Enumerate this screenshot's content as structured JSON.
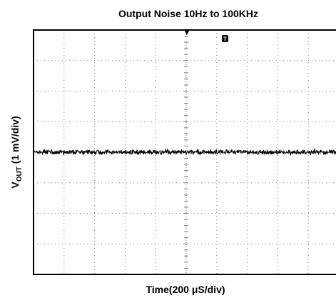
{
  "chart_data": {
    "type": "line",
    "title": "Output Noise 10Hz to 100KHz",
    "xlabel_prefix": "Time",
    "xlabel_value": "(200 μS/div)",
    "ylabel_main": "V",
    "ylabel_sub": "OUT",
    "ylabel_rest": " (1 mV/div)",
    "x_divisions": 10,
    "y_divisions": 8,
    "trace_level_div": 4,
    "noise_peak_to_peak_div": 0.18,
    "trigger_marker": "▼",
    "trigger_marker_icon": "trigger-arrow-icon",
    "cursor_marker": "T",
    "cursor_marker_icon": "trigger-t-icon",
    "grid": true,
    "colors": {
      "trace": "#000000",
      "grid": "#7a7a7a",
      "frame": "#000000"
    }
  }
}
